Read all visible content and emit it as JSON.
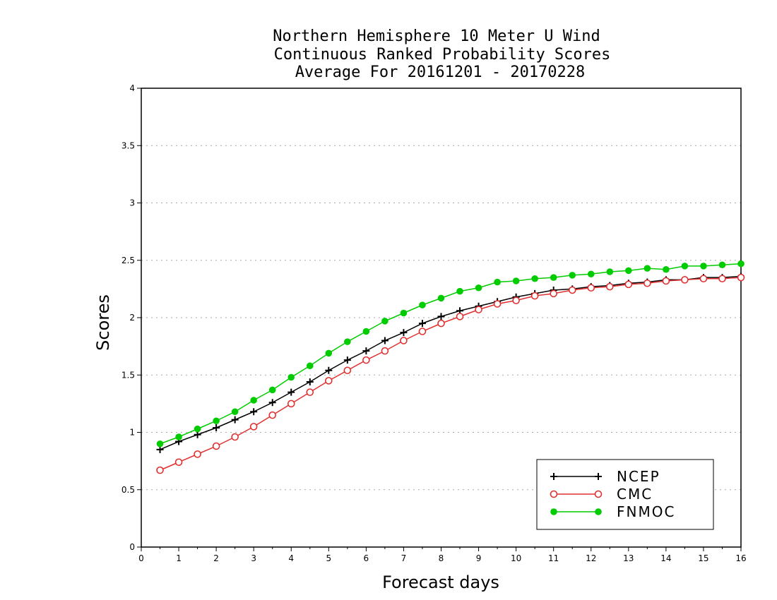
{
  "chart_data": {
    "type": "line",
    "title_lines": [
      "Northern Hemisphere 10 Meter U Wind",
      "Continuous Ranked Probability Scores",
      "Average For 20161201 - 20170228"
    ],
    "xlabel": "Forecast days",
    "ylabel": "Scores",
    "xlim": [
      0,
      16
    ],
    "ylim": [
      0,
      4
    ],
    "x_ticks": [
      "0",
      "1",
      "2",
      "3",
      "4",
      "5",
      "6",
      "7",
      "8",
      "9",
      "10",
      "11",
      "12",
      "13",
      "14",
      "15",
      "16"
    ],
    "y_ticks": [
      "0",
      "0.5",
      "1",
      "1.5",
      "2",
      "2.5",
      "3",
      "3.5",
      "4"
    ],
    "grid": true,
    "legend_position": "bottom-right",
    "x": [
      0.5,
      1,
      1.5,
      2,
      2.5,
      3,
      3.5,
      4,
      4.5,
      5,
      5.5,
      6,
      6.5,
      7,
      7.5,
      8,
      8.5,
      9,
      9.5,
      10,
      10.5,
      11,
      11.5,
      12,
      12.5,
      13,
      13.5,
      14,
      14.5,
      15,
      15.5,
      16
    ],
    "series": [
      {
        "name": "NCEP",
        "color": "#000000",
        "marker": "plus",
        "values": [
          0.85,
          0.92,
          0.98,
          1.04,
          1.11,
          1.18,
          1.26,
          1.35,
          1.44,
          1.54,
          1.63,
          1.71,
          1.8,
          1.87,
          1.95,
          2.01,
          2.06,
          2.1,
          2.14,
          2.18,
          2.21,
          2.24,
          2.25,
          2.27,
          2.28,
          2.3,
          2.31,
          2.33,
          2.33,
          2.35,
          2.35,
          2.36
        ]
      },
      {
        "name": "CMC",
        "color": "#e03030",
        "marker": "open-circle",
        "values": [
          0.67,
          0.74,
          0.81,
          0.88,
          0.96,
          1.05,
          1.15,
          1.25,
          1.35,
          1.45,
          1.54,
          1.63,
          1.71,
          1.8,
          1.88,
          1.95,
          2.01,
          2.07,
          2.12,
          2.15,
          2.19,
          2.21,
          2.24,
          2.26,
          2.27,
          2.29,
          2.3,
          2.32,
          2.33,
          2.34,
          2.34,
          2.35
        ]
      },
      {
        "name": "FNMOC",
        "color": "#00cc00",
        "marker": "filled-circle",
        "values": [
          0.9,
          0.96,
          1.03,
          1.1,
          1.18,
          1.28,
          1.37,
          1.48,
          1.58,
          1.69,
          1.79,
          1.88,
          1.97,
          2.04,
          2.11,
          2.17,
          2.23,
          2.26,
          2.31,
          2.32,
          2.34,
          2.35,
          2.37,
          2.38,
          2.4,
          2.41,
          2.43,
          2.42,
          2.45,
          2.45,
          2.46,
          2.47
        ]
      }
    ]
  }
}
